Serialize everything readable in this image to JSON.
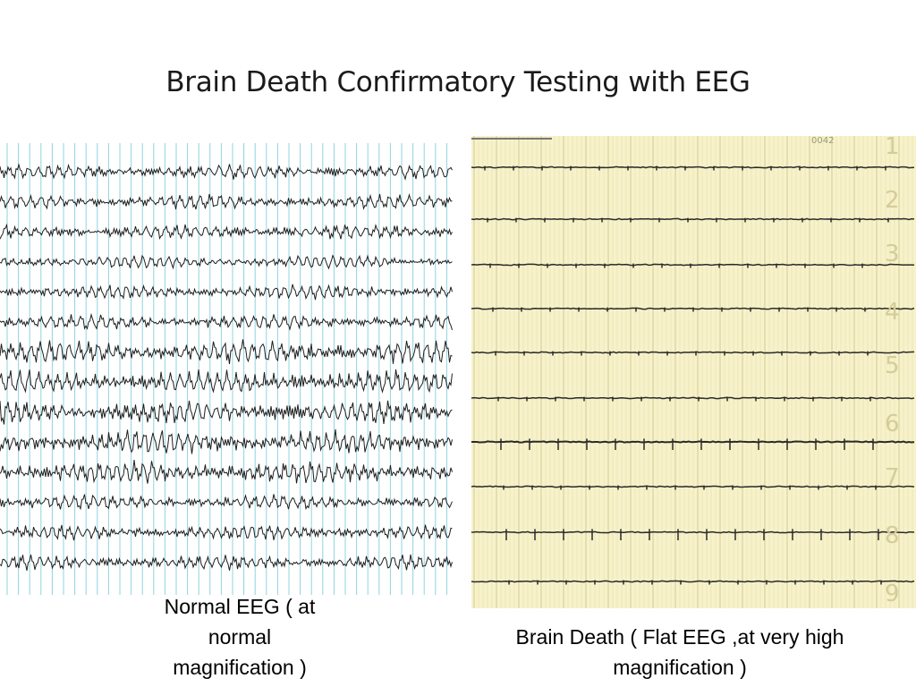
{
  "slide": {
    "title": "Brain Death Confirmatory Testing with EEG"
  },
  "figures": {
    "normal_eeg": {
      "caption": "Normal EEG ( at\nnormal\nmagnification )",
      "trace_count": 14
    },
    "flat_eeg": {
      "caption": "Brain Death ( Flat EEG ,at very high\nmagnification )",
      "channel_numbers": [
        "1",
        "2",
        "3",
        "4",
        "5",
        "6",
        "7",
        "8",
        "9"
      ],
      "header_text": "0042"
    }
  },
  "colors": {
    "normal_grid": "#8fd3e0",
    "trace": "#1e1e1e",
    "flat_paper": "#f7f2c9",
    "flat_grid": "#d9d1a0",
    "channel_number": "#d4cc9a"
  }
}
